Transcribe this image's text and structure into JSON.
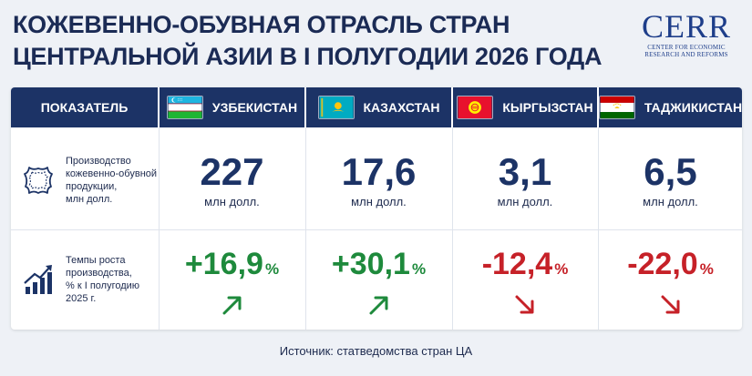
{
  "title": {
    "line1": "КОЖЕВЕННО-ОБУВНАЯ ОТРАСЛЬ СТРАН",
    "line2": "ЦЕНТРАЛЬНОЙ АЗИИ В I ПОЛУГОДИИ 2026 ГОДА"
  },
  "logo": {
    "word": "CERR",
    "sub1": "Center for Economic",
    "sub2": "Research and Reforms"
  },
  "table": {
    "header_indicator": "ПОКАЗАТЕЛЬ",
    "countries": [
      {
        "name": "УЗБЕКИСТАН",
        "flag": "uzbekistan-flag"
      },
      {
        "name": "КАЗАХСТАН",
        "flag": "kazakhstan-flag"
      },
      {
        "name": "КЫРГЫЗСТАН",
        "flag": "kyrgyzstan-flag"
      },
      {
        "name": "ТАДЖИКИСТАН",
        "flag": "tajikistan-flag"
      }
    ],
    "rows": [
      {
        "icon": "leather-hide-icon",
        "label": [
          "Производство",
          "кожевенно-обувной",
          "продукции,",
          "млн долл."
        ],
        "values": [
          "227",
          "17,6",
          "3,1",
          "6,5"
        ],
        "unit": "млн долл."
      },
      {
        "icon": "growth-chart-icon",
        "label": [
          "Темпы роста",
          "производства,",
          "% к I полугодию",
          "2025 г."
        ],
        "values": [
          "+16,9",
          "+30,1",
          "-12,4",
          "-22,0"
        ],
        "unit": "%",
        "trend": [
          "up",
          "up",
          "down",
          "down"
        ]
      }
    ]
  },
  "colors": {
    "navy": "#1c3366",
    "green": "#1e8a3c",
    "red": "#c62128",
    "background": "#eef1f6"
  },
  "source": "Источник: статведомства стран ЦА"
}
